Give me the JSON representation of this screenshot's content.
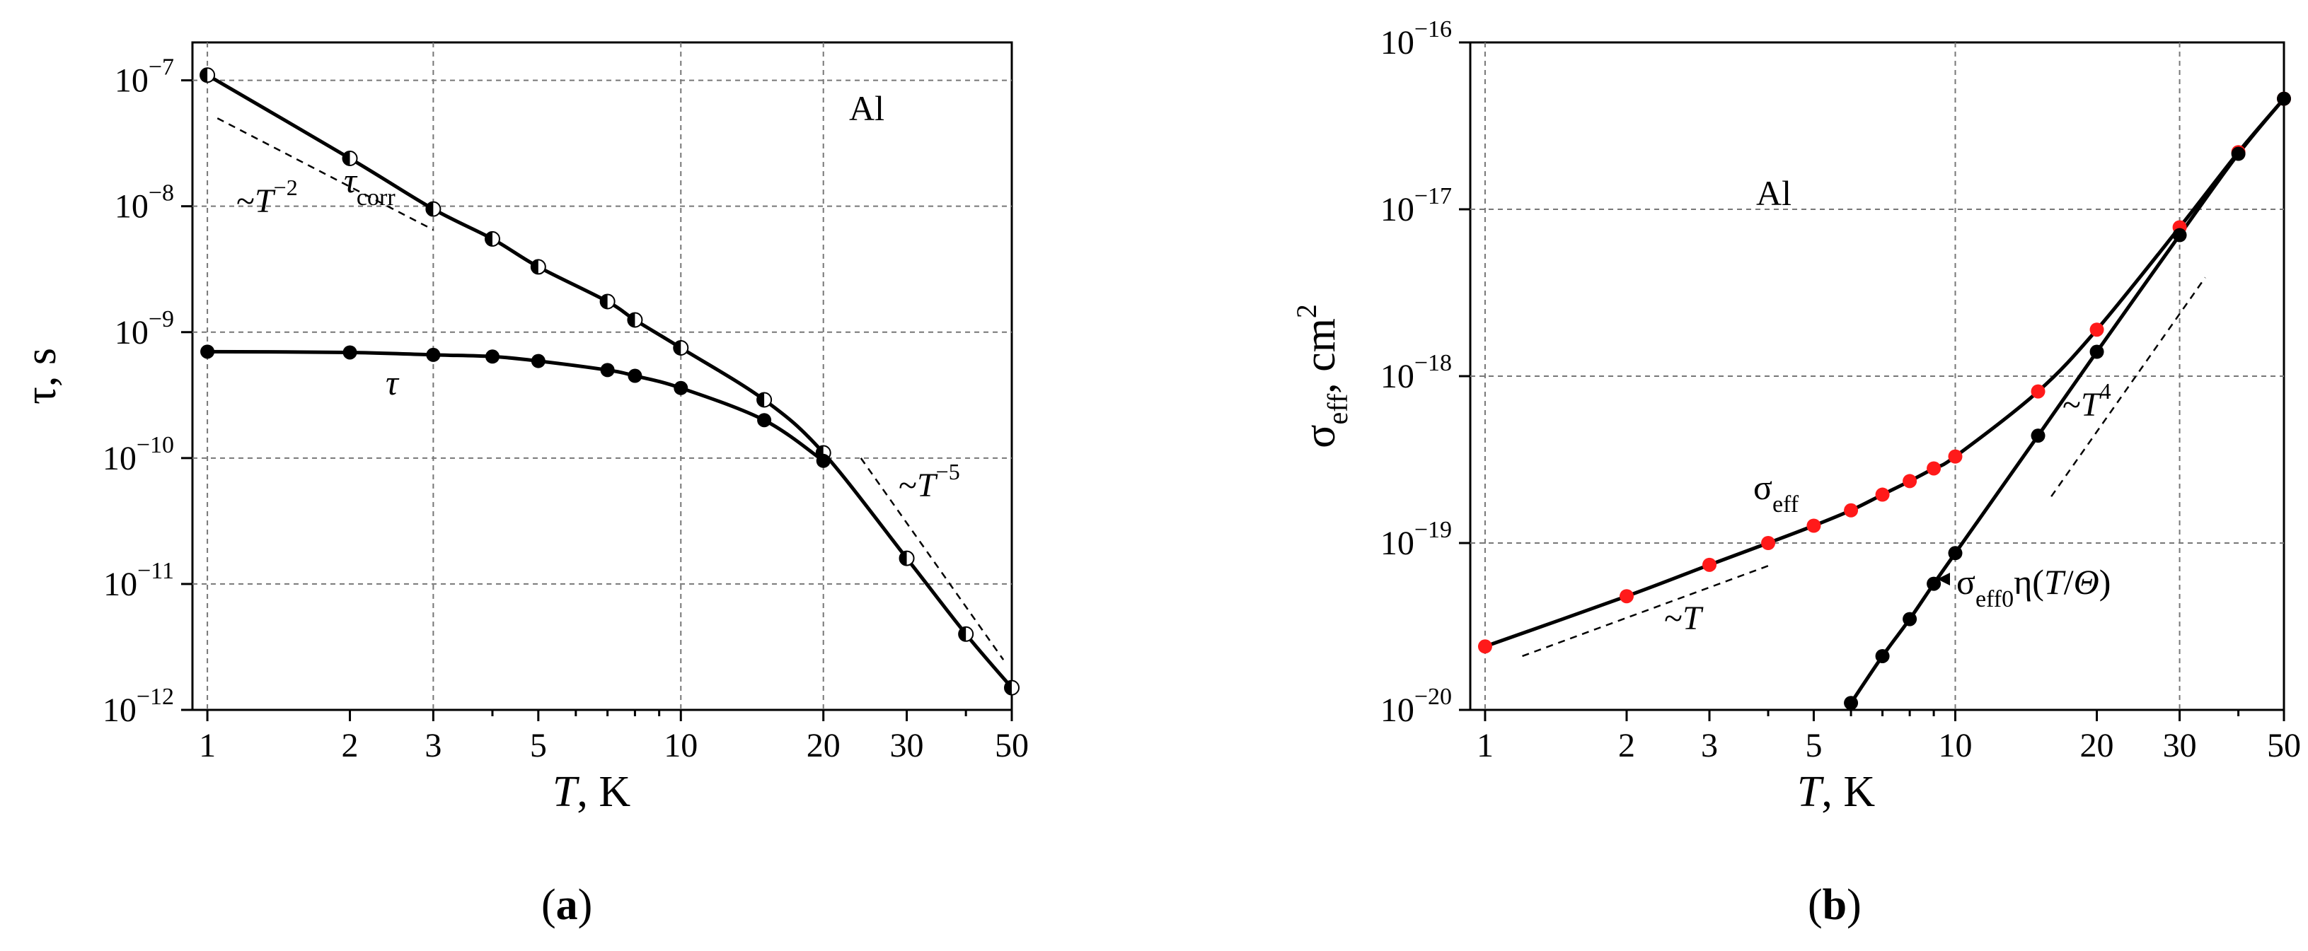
{
  "chart_data": [
    {
      "panel": "(a)",
      "type": "line",
      "x_scale": "log",
      "y_scale": "log",
      "xlim": [
        0.93,
        50
      ],
      "ylim": [
        1e-12,
        2e-07
      ],
      "xlabel_italic": "T",
      "xlabel_rest": ", K",
      "ylabel": "τ, s",
      "x_ticks": [
        1,
        2,
        3,
        5,
        10,
        20,
        30,
        50
      ],
      "x_tick_labels": [
        "1",
        "2",
        "3",
        "5",
        "10",
        "20",
        "30",
        "50"
      ],
      "x_grid": [
        1,
        3,
        10,
        20
      ],
      "y_ticks": [
        {
          "value": 1e-12,
          "base": "10",
          "exp": "−12"
        },
        {
          "value": 1e-11,
          "base": "10",
          "exp": "−11"
        },
        {
          "value": 1e-10,
          "base": "10",
          "exp": "−10"
        },
        {
          "value": 1e-09,
          "base": "10",
          "exp": "−9"
        },
        {
          "value": 1e-08,
          "base": "10",
          "exp": "−8"
        },
        {
          "value": 1e-07,
          "base": "10",
          "exp": "−7"
        }
      ],
      "material_label": "Al",
      "series": [
        {
          "name": "τcorr",
          "label_main": "τ",
          "label_sub": "corr",
          "marker": "half-filled",
          "color": "#000000",
          "x": [
            1,
            2,
            3,
            4,
            5,
            7,
            8,
            10,
            15,
            20,
            30,
            40,
            50
          ],
          "y": [
            1.1e-07,
            2.4e-08,
            9.5e-09,
            5.5e-09,
            3.3e-09,
            1.75e-09,
            1.25e-09,
            7.5e-10,
            2.9e-10,
            1.1e-10,
            1.6e-11,
            4e-12,
            1.5e-12
          ]
        },
        {
          "name": "τ",
          "label_main": "τ",
          "marker": "filled",
          "color": "#000000",
          "x": [
            1,
            2,
            3,
            4,
            5,
            7,
            8,
            10,
            15,
            20
          ],
          "y": [
            7e-10,
            6.9e-10,
            6.6e-10,
            6.4e-10,
            5.9e-10,
            5e-10,
            4.5e-10,
            3.6e-10,
            2e-10,
            9.5e-11
          ]
        }
      ],
      "slope_guides": [
        {
          "label_prefix": "~",
          "label_var": "T",
          "label_exp": "−2",
          "x": [
            1.05,
            3.0
          ],
          "y": [
            5e-08,
            6.5e-09
          ]
        },
        {
          "label_prefix": "~",
          "label_var": "T",
          "label_exp": "−5",
          "x": [
            24,
            48
          ],
          "y": [
            1e-10,
            2.5e-12
          ]
        }
      ]
    },
    {
      "panel": "(b)",
      "type": "line",
      "x_scale": "log",
      "y_scale": "log",
      "xlim": [
        0.93,
        50
      ],
      "ylim": [
        1e-20,
        1e-16
      ],
      "xlabel_italic": "T",
      "xlabel_rest": ", K",
      "ylabel_main": "σ",
      "ylabel_sub": "eff",
      "ylabel_rest": ", cm",
      "ylabel_sup": "2",
      "x_ticks": [
        1,
        2,
        3,
        5,
        10,
        20,
        30,
        50
      ],
      "x_tick_labels": [
        "1",
        "2",
        "3",
        "5",
        "10",
        "20",
        "30",
        "50"
      ],
      "x_grid": [
        1,
        10,
        30
      ],
      "y_ticks": [
        {
          "value": 1e-20,
          "base": "10",
          "exp": "−20"
        },
        {
          "value": 1e-19,
          "base": "10",
          "exp": "−19"
        },
        {
          "value": 1e-18,
          "base": "10",
          "exp": "−18"
        },
        {
          "value": 1e-17,
          "base": "10",
          "exp": "−17"
        },
        {
          "value": 1e-16,
          "base": "10",
          "exp": "−16"
        }
      ],
      "material_label": "Al",
      "series": [
        {
          "name": "σeff",
          "label_main": "σ",
          "label_sub": "eff",
          "marker": "filled",
          "color": "#ff1a1a",
          "x": [
            1,
            2,
            3,
            4,
            5,
            6,
            7,
            8,
            9,
            10,
            15,
            20,
            30,
            40,
            50
          ],
          "y": [
            2.4e-20,
            4.8e-20,
            7.4e-20,
            1e-19,
            1.27e-19,
            1.57e-19,
            1.95e-19,
            2.35e-19,
            2.8e-19,
            3.3e-19,
            8.1e-19,
            1.9e-18,
            7.8e-18,
            2.2e-17,
            4.6e-17
          ]
        },
        {
          "name": "σeff0η(T/Θ)",
          "label_main": "σ",
          "label_sub": "eff0",
          "label_rest": "η(",
          "label_var1": "T",
          "label_slash": "/",
          "label_var2": "Θ",
          "label_close": ")",
          "marker": "filled",
          "color": "#000000",
          "x": [
            6,
            7,
            8,
            9,
            10,
            15,
            20,
            30,
            40,
            50
          ],
          "y": [
            1.1e-20,
            2.1e-20,
            3.5e-20,
            5.7e-20,
            8.7e-20,
            4.4e-19,
            1.4e-18,
            7e-18,
            2.15e-17,
            4.6e-17
          ]
        }
      ],
      "slope_guides": [
        {
          "label_prefix": "~",
          "label_var": "T",
          "label_exp": "",
          "x": [
            1.2,
            4.0
          ],
          "y": [
            2.1e-20,
            7.3e-20
          ]
        },
        {
          "label_prefix": "~",
          "label_var": "T",
          "label_exp": "4",
          "x": [
            16,
            34
          ],
          "y": [
            1.9e-19,
            3.9e-18
          ]
        }
      ]
    }
  ]
}
